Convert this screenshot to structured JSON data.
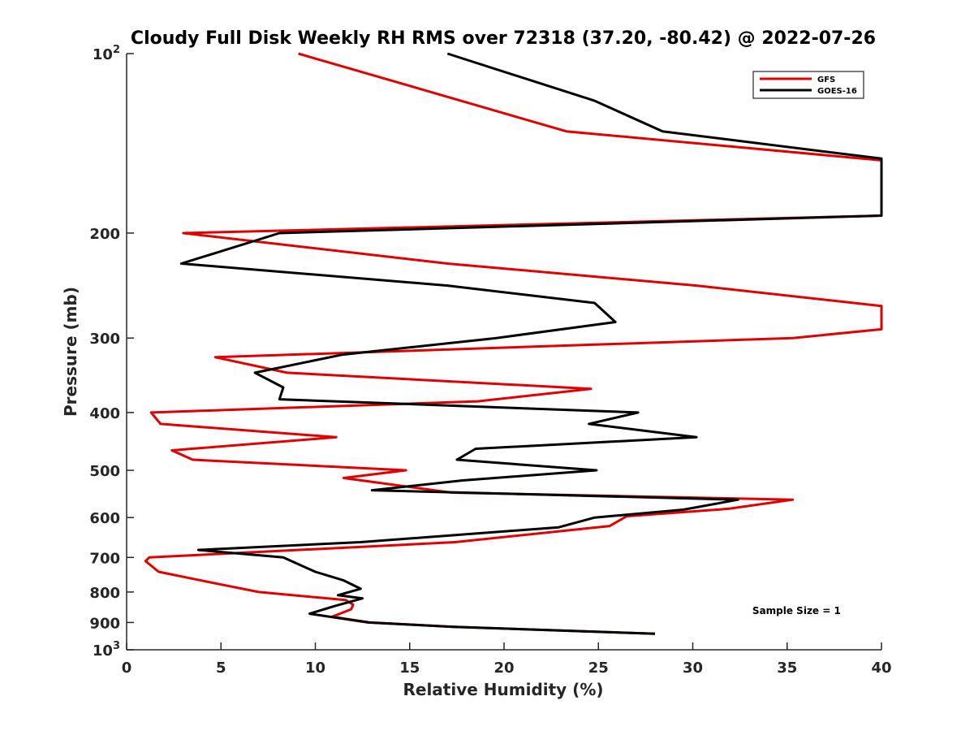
{
  "chart_data": {
    "type": "line",
    "title": "Cloudy Full Disk Weekly RH RMS over 72318 (37.20, -80.42) @ 2022-07-26",
    "xlabel": "Relative Humidity (%)",
    "ylabel": "Pressure (mb)",
    "xlim": [
      0,
      40
    ],
    "ylim": [
      100,
      1000
    ],
    "yscale": "log",
    "y_reversed": true,
    "x_ticks": [
      "0",
      "5",
      "10",
      "15",
      "20",
      "25",
      "30",
      "35",
      "40"
    ],
    "y_ticks": [
      {
        "value": 100,
        "label": "10",
        "sup": "2"
      },
      {
        "value": 200,
        "label": "200"
      },
      {
        "value": 300,
        "label": "300"
      },
      {
        "value": 400,
        "label": "400"
      },
      {
        "value": 500,
        "label": "500"
      },
      {
        "value": 600,
        "label": "600"
      },
      {
        "value": 700,
        "label": "700"
      },
      {
        "value": 800,
        "label": "800"
      },
      {
        "value": 900,
        "label": "900"
      },
      {
        "value": 1000,
        "label": "10",
        "sup": "3"
      }
    ],
    "legend_position": "top-right",
    "series": [
      {
        "name": "GFS",
        "color": "#e00000",
        "points": [
          [
            9.1,
            100
          ],
          [
            23.3,
            135
          ],
          [
            40,
            151
          ],
          [
            40,
            187
          ],
          [
            3.0,
            200
          ],
          [
            17.0,
            225
          ],
          [
            30.2,
            245
          ],
          [
            40,
            265
          ],
          [
            40,
            290
          ],
          [
            35.3,
            300
          ],
          [
            4.7,
            323
          ],
          [
            8.5,
            343
          ],
          [
            24.6,
            365
          ],
          [
            18.6,
            383
          ],
          [
            1.3,
            400
          ],
          [
            1.8,
            418
          ],
          [
            11.1,
            440
          ],
          [
            2.4,
            463
          ],
          [
            3.5,
            480
          ],
          [
            14.8,
            500
          ],
          [
            11.5,
            515
          ],
          [
            17.2,
            545
          ],
          [
            35.3,
            560
          ],
          [
            31.9,
            580
          ],
          [
            26.5,
            597
          ],
          [
            25.6,
            620
          ],
          [
            17.4,
            660
          ],
          [
            1.2,
            700
          ],
          [
            1.0,
            710
          ],
          [
            1.7,
            740
          ],
          [
            4.8,
            775
          ],
          [
            7.0,
            800
          ],
          [
            11.6,
            825
          ],
          [
            12.0,
            840
          ],
          [
            11.9,
            855
          ],
          [
            10.9,
            880
          ],
          [
            12.9,
            900
          ],
          [
            17.3,
            915
          ],
          [
            28.0,
            940
          ]
        ]
      },
      {
        "name": "GOES-16",
        "color": "#000000",
        "points": [
          [
            17.0,
            100
          ],
          [
            24.8,
            120
          ],
          [
            28.4,
            135
          ],
          [
            40,
            150
          ],
          [
            40,
            187
          ],
          [
            8.1,
            200
          ],
          [
            2.9,
            225
          ],
          [
            17.0,
            245
          ],
          [
            24.8,
            262
          ],
          [
            25.9,
            282
          ],
          [
            19.6,
            300
          ],
          [
            11.4,
            320
          ],
          [
            6.8,
            343
          ],
          [
            8.3,
            363
          ],
          [
            8.1,
            380
          ],
          [
            27.1,
            400
          ],
          [
            24.5,
            418
          ],
          [
            30.2,
            440
          ],
          [
            18.5,
            460
          ],
          [
            17.5,
            480
          ],
          [
            24.9,
            500
          ],
          [
            17.8,
            520
          ],
          [
            13.0,
            540
          ],
          [
            32.4,
            560
          ],
          [
            29.5,
            582
          ],
          [
            24.8,
            600
          ],
          [
            22.9,
            623
          ],
          [
            12.4,
            660
          ],
          [
            3.8,
            680
          ],
          [
            8.3,
            700
          ],
          [
            10.0,
            740
          ],
          [
            11.5,
            765
          ],
          [
            12.4,
            790
          ],
          [
            11.2,
            810
          ],
          [
            12.5,
            820
          ],
          [
            11.0,
            845
          ],
          [
            9.7,
            870
          ],
          [
            12.8,
            900
          ],
          [
            17.3,
            915
          ],
          [
            28.0,
            940
          ]
        ]
      }
    ],
    "annotations": [
      {
        "text": "Sample Size = 1",
        "x": 35.5,
        "y": 860
      }
    ]
  }
}
